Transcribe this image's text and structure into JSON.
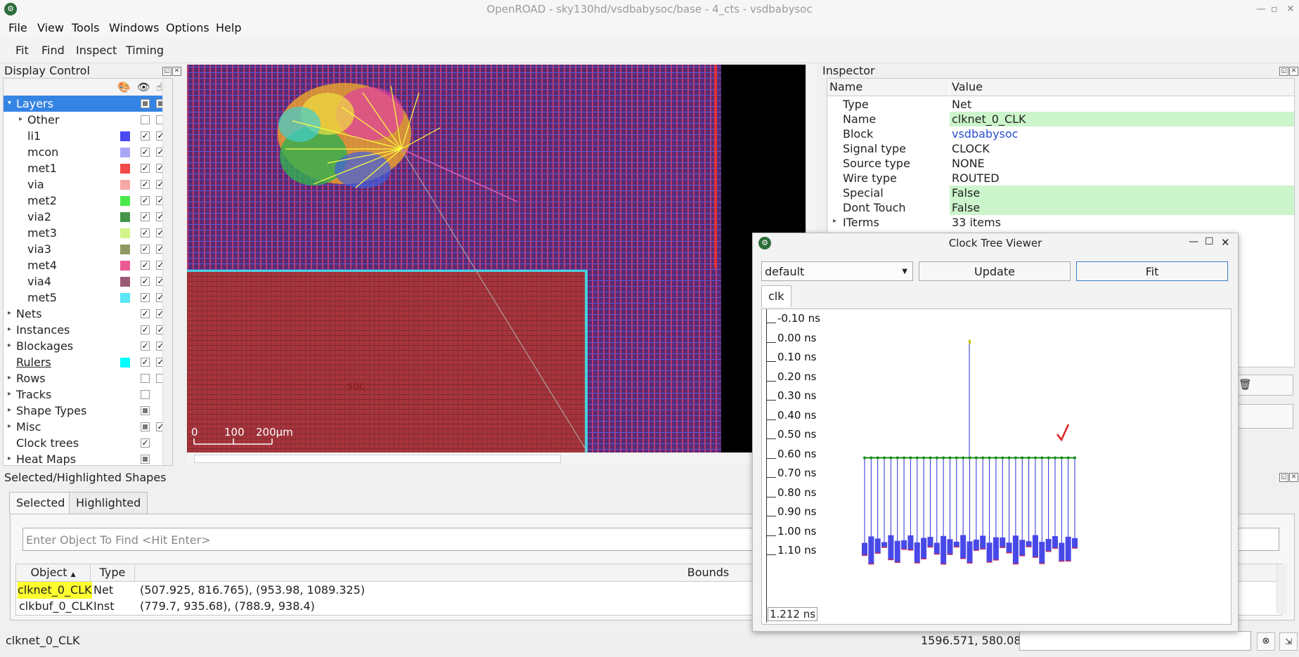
{
  "window": {
    "title": "OpenROAD - sky130hd/vsdbabysoc/base - 4_cts - vsdbabysoc",
    "logo_icon": "openroad-logo-icon",
    "min_icon": "minimize-icon",
    "max_icon": "maximize-icon",
    "close_icon": "close-icon"
  },
  "menubar": [
    "File",
    "View",
    "Tools",
    "Windows",
    "Options",
    "Help"
  ],
  "toolbar": [
    "Fit",
    "Find",
    "Inspect",
    "Timing"
  ],
  "display_control": {
    "title": "Display Control",
    "header_icons": [
      "palette-icon",
      "eye-icon",
      "pointer-icon"
    ],
    "rows": [
      {
        "label": "Layers",
        "arrow": "▾",
        "indent": 0,
        "selected": true,
        "vis": "tri",
        "sel": "tri"
      },
      {
        "label": "Other",
        "arrow": "▸",
        "indent": 1,
        "vis": "empty",
        "sel": "empty"
      },
      {
        "label": "li1",
        "indent": 2,
        "color": "#4a48f0",
        "vis": "check",
        "sel": "check"
      },
      {
        "label": "mcon",
        "indent": 2,
        "color": "#a9a6f8",
        "vis": "check",
        "sel": "check"
      },
      {
        "label": "met1",
        "indent": 2,
        "color": "#f24a4a",
        "vis": "check",
        "sel": "check"
      },
      {
        "label": "via",
        "indent": 2,
        "color": "#f8a7a7",
        "vis": "check",
        "sel": "check"
      },
      {
        "label": "met2",
        "indent": 2,
        "color": "#4aea4a",
        "vis": "check",
        "sel": "check"
      },
      {
        "label": "via2",
        "indent": 2,
        "color": "#46964a",
        "vis": "check",
        "sel": "check"
      },
      {
        "label": "met3",
        "indent": 2,
        "color": "#d2f58a",
        "vis": "check",
        "sel": "check"
      },
      {
        "label": "via3",
        "indent": 2,
        "color": "#8e9a62",
        "vis": "check",
        "sel": "check"
      },
      {
        "label": "met4",
        "indent": 2,
        "color": "#ec5a94",
        "vis": "check",
        "sel": "check"
      },
      {
        "label": "via4",
        "indent": 2,
        "color": "#9a5a76",
        "vis": "check",
        "sel": "check"
      },
      {
        "label": "met5",
        "indent": 2,
        "color": "#5ae6f5",
        "vis": "check",
        "sel": "check"
      },
      {
        "label": "Nets",
        "arrow": "▸",
        "indent": 0,
        "vis": "check",
        "sel": "check"
      },
      {
        "label": "Instances",
        "arrow": "▸",
        "indent": 0,
        "vis": "check",
        "sel": "check"
      },
      {
        "label": "Blockages",
        "arrow": "▸",
        "indent": 0,
        "vis": "check",
        "sel": "check"
      },
      {
        "label": "Rulers",
        "indent": 0,
        "color": "#00ffff",
        "vis": "check",
        "sel": "check",
        "underline": true
      },
      {
        "label": "Rows",
        "arrow": "▸",
        "indent": 0,
        "vis": "empty",
        "sel": "empty"
      },
      {
        "label": "Tracks",
        "arrow": "▸",
        "indent": 0,
        "vis": "empty"
      },
      {
        "label": "Shape Types",
        "arrow": "▸",
        "indent": 0,
        "vis": "tri"
      },
      {
        "label": "Misc",
        "arrow": "▸",
        "indent": 0,
        "vis": "tri",
        "sel": "check"
      },
      {
        "label": "Clock trees",
        "indent": 0,
        "vis": "check"
      },
      {
        "label": "Heat Maps",
        "arrow": "▸",
        "indent": 0,
        "vis": "tri"
      }
    ]
  },
  "layout_view": {
    "scale_labels": [
      "0",
      "100",
      "200μm"
    ],
    "label_soc": "soc"
  },
  "inspector": {
    "title": "Inspector",
    "col_name": "Name",
    "col_value": "Value",
    "rows": [
      {
        "name": "Type",
        "value": "Net"
      },
      {
        "name": "Name",
        "value": "clknet_0_CLK",
        "hl": true
      },
      {
        "name": "Block",
        "value": "vsdbabysoc",
        "link": true
      },
      {
        "name": "Signal type",
        "value": "CLOCK"
      },
      {
        "name": "Source type",
        "value": "NONE"
      },
      {
        "name": "Wire type",
        "value": "ROUTED"
      },
      {
        "name": "Special",
        "value": "False",
        "hl": true
      },
      {
        "name": "Dont Touch",
        "value": "False",
        "hl": true
      },
      {
        "name": "ITerms",
        "value": "33 items",
        "arrow": true
      }
    ],
    "trash_icon": "trash-icon"
  },
  "selected_panel": {
    "title": "Selected/Highlighted Shapes",
    "tabs": [
      "Selected",
      "Highlighted"
    ],
    "find_placeholder": "Enter Object To Find <Hit Enter>",
    "columns": [
      "Object",
      "Type",
      "Bounds"
    ],
    "sort_icon": "sort-up-icon",
    "rows": [
      {
        "object": "clknet_0_CLK",
        "type": "Net",
        "bounds": "(507.925, 816.765), (953.98, 1089.325)"
      },
      {
        "object": "clkbuf_0_CLK",
        "type": "Inst",
        "bounds": "(779.7, 935.68), (788.9, 938.4)"
      }
    ]
  },
  "status_bar": {
    "left": "clknet_0_CLK",
    "coords": "1596.571, 580.081"
  },
  "clock_tree_viewer": {
    "title": "Clock Tree Viewer",
    "combo_value": "default",
    "update_label": "Update",
    "fit_label": "Fit",
    "tab": "clk",
    "ticks": [
      "-0.10 ns",
      "0.00 ns",
      "0.10 ns",
      "0.20 ns",
      "0.30 ns",
      "0.40 ns",
      "0.50 ns",
      "0.60 ns",
      "0.70 ns",
      "0.80 ns",
      "0.90 ns",
      "1.00 ns",
      "1.10 ns"
    ],
    "max_tick": "1.212 ns",
    "root_delay_ns": 0.0,
    "buffer_delay_ns": 0.6,
    "leaf_count": 33,
    "leaf_delay_min_ns": 1.06,
    "leaf_delay_max_ns": 1.15,
    "colors": {
      "wire": "#2c2cd8",
      "buffer": "#1a8a1a",
      "leaf": "#4848e8",
      "leaf_edge": "#c03060",
      "annotation": "#e02020"
    }
  }
}
